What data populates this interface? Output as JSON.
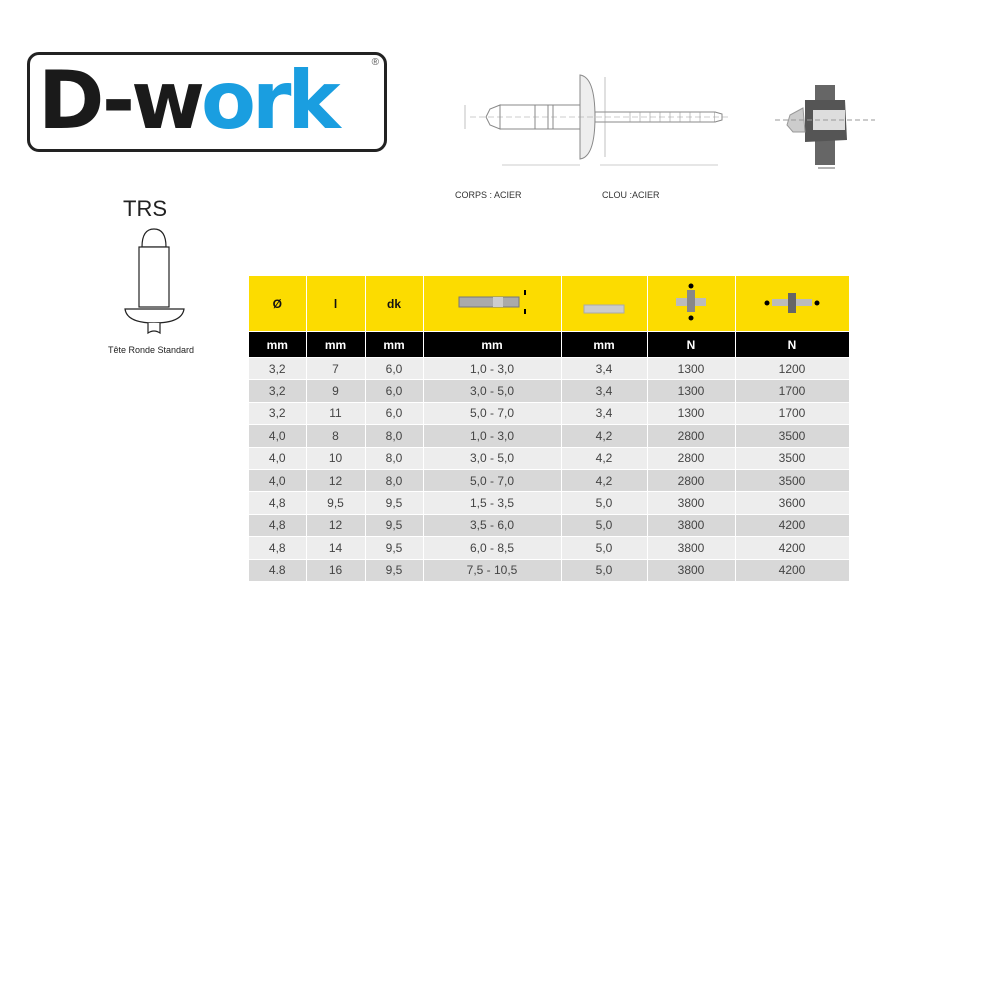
{
  "logo": {
    "text_dark": "D-w",
    "text_blue": "ork",
    "registered": "®",
    "brand_colors": {
      "dark": "#1a1a1a",
      "blue": "#1a9ee0"
    }
  },
  "product": {
    "code": "TRS",
    "caption": "Tête Ronde Standard"
  },
  "drawing": {
    "body_material": "CORPS : ACIER",
    "mandrel_material": "CLOU :ACIER"
  },
  "table": {
    "header_icons": [
      "diameter",
      "length",
      "head-diameter",
      "grip-range-icon",
      "drill-hole-icon",
      "shear-strength-icon",
      "tensile-strength-icon"
    ],
    "headers": [
      "Ø",
      "l",
      "dk",
      "",
      "",
      "",
      ""
    ],
    "units": [
      "mm",
      "mm",
      "mm",
      "mm",
      "mm",
      "N",
      "N"
    ],
    "rows": [
      [
        "3,2",
        "7",
        "6,0",
        "1,0 - 3,0",
        "3,4",
        "1300",
        "1200"
      ],
      [
        "3,2",
        "9",
        "6,0",
        "3,0 - 5,0",
        "3,4",
        "1300",
        "1700"
      ],
      [
        "3,2",
        "11",
        "6,0",
        "5,0 - 7,0",
        "3,4",
        "1300",
        "1700"
      ],
      [
        "4,0",
        "8",
        "8,0",
        "1,0 - 3,0",
        "4,2",
        "2800",
        "3500"
      ],
      [
        "4,0",
        "10",
        "8,0",
        "3,0 - 5,0",
        "4,2",
        "2800",
        "3500"
      ],
      [
        "4,0",
        "12",
        "8,0",
        "5,0 - 7,0",
        "4,2",
        "2800",
        "3500"
      ],
      [
        "4,8",
        "9,5",
        "9,5",
        "1,5 - 3,5",
        "5,0",
        "3800",
        "3600"
      ],
      [
        "4,8",
        "12",
        "9,5",
        "3,5 - 6,0",
        "5,0",
        "3800",
        "4200"
      ],
      [
        "4,8",
        "14",
        "9,5",
        "6,0 - 8,5",
        "5,0",
        "3800",
        "4200"
      ],
      [
        "4.8",
        "16",
        "9,5",
        "7,5 - 10,5",
        "5,0",
        "3800",
        "4200"
      ]
    ],
    "colors": {
      "header": "#fcdc00",
      "units": "#000000"
    }
  }
}
